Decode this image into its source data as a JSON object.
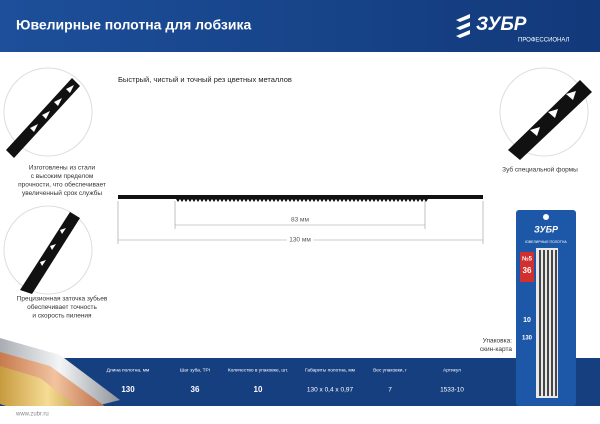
{
  "header": {
    "title": "Ювелирные полотна для лобзика",
    "brand": "ЗУБР",
    "brand_sub": "ПРОФЕССИОНАЛ"
  },
  "tagline": "Быстрый, чистый и точный рез цветных металлов",
  "features": [
    {
      "lines": [
        "Изготовлены из стали",
        "с высоким пределом",
        "прочности, что обеспечивает",
        "увеличенный срок службы"
      ]
    },
    {
      "lines": [
        "Прецизионная заточка зубьев",
        "обеспечивает точность",
        "и скорость пиления"
      ]
    },
    {
      "lines": [
        "Зуб специальной формы"
      ]
    }
  ],
  "dimensions": {
    "inner": "83 мм",
    "outer": "130 мм"
  },
  "package": {
    "lines": [
      "Упаковка:",
      "скин-карта"
    ],
    "brand": "ЗУБР",
    "name": "ЮВЕЛИРНЫЕ ПОЛОТНА",
    "number": "№5",
    "tpi": "36",
    "count": "10",
    "length": "130"
  },
  "table": {
    "headers": [
      "Длина полотна, мм",
      "Шаг зуба, TPI",
      "Количество в упаковке, шт.",
      "Габариты полотна, мм",
      "Вес упаковки, г",
      "Артикул"
    ],
    "row": [
      "130",
      "36",
      "10",
      "130 x 0,4 x 0,97",
      "7",
      "1533-10"
    ]
  },
  "footer": {
    "url": "www.zubr.ru"
  }
}
